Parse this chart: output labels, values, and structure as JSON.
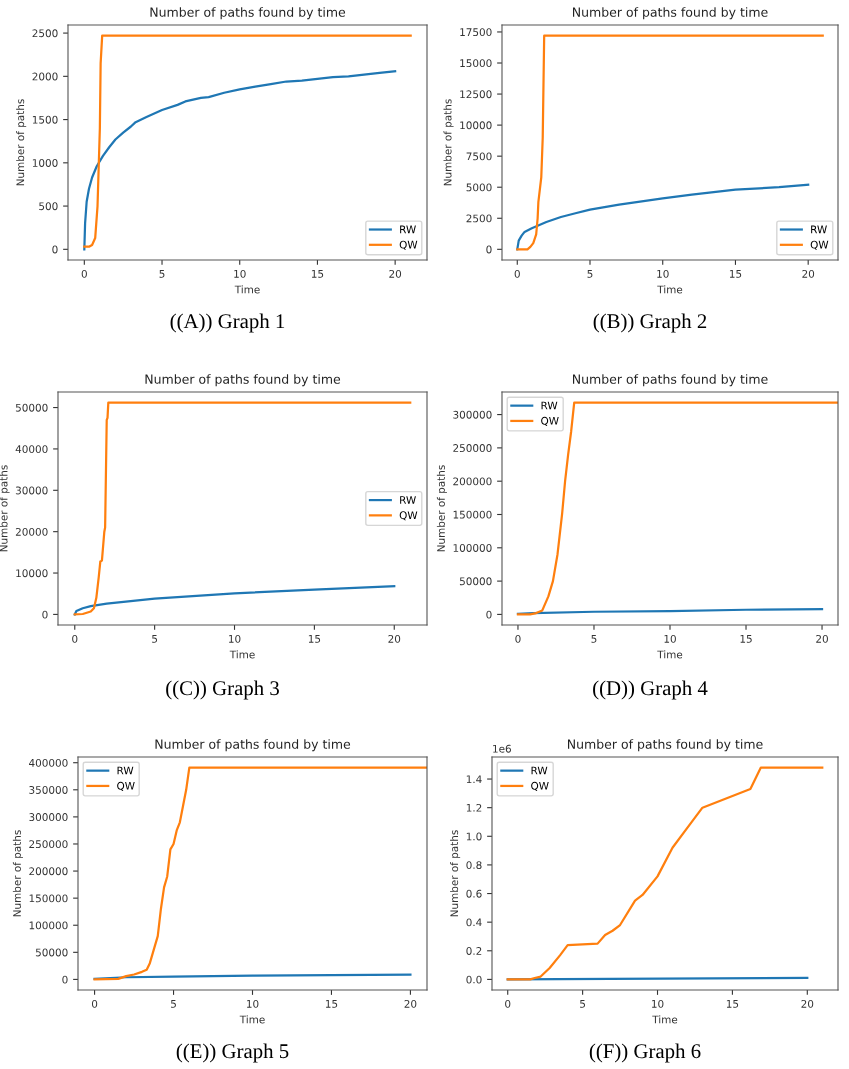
{
  "chart_data": [
    {
      "type": "line",
      "title": "Number of paths found by time",
      "xlabel": "Time",
      "ylabel": "Number of paths",
      "annotations": [
        "((A)) Graph 1"
      ],
      "legend": "lower right",
      "grid": false,
      "xlim": [
        -1.05,
        22.05
      ],
      "xticks": [
        0,
        5,
        10,
        15,
        20
      ],
      "ylim": [
        -123.5,
        2593.5
      ],
      "yticks": [
        0,
        500,
        1000,
        1500,
        2000,
        2500
      ],
      "series": [
        {
          "name": "RW",
          "color": "#1f77b4",
          "x": [
            0,
            0.05,
            0.15,
            0.3,
            0.5,
            0.8,
            1.2,
            1.6,
            2,
            2.5,
            3,
            3.3,
            4,
            5,
            6,
            6.5,
            7.5,
            8,
            9,
            10,
            11,
            12,
            13,
            14,
            15,
            16,
            17,
            18,
            19,
            20
          ],
          "values": [
            0,
            300,
            550,
            700,
            830,
            960,
            1080,
            1180,
            1270,
            1350,
            1420,
            1470,
            1530,
            1610,
            1670,
            1710,
            1750,
            1760,
            1810,
            1850,
            1880,
            1910,
            1940,
            1950,
            1970,
            1990,
            2000,
            2020,
            2040,
            2060
          ]
        },
        {
          "name": "QW",
          "color": "#ff7f0e",
          "x": [
            0,
            0.3,
            0.5,
            0.7,
            0.85,
            1.0,
            1.05,
            1.15,
            21
          ],
          "values": [
            30,
            30,
            50,
            130,
            500,
            1400,
            2150,
            2470,
            2470
          ]
        }
      ]
    },
    {
      "type": "line",
      "title": "Number of paths found by time",
      "xlabel": "Time",
      "ylabel": "Number of paths",
      "annotations": [
        "((B)) Graph 2"
      ],
      "legend": "lower right",
      "grid": false,
      "xlim": [
        -1.05,
        22.05
      ],
      "xticks": [
        0,
        5,
        10,
        15,
        20
      ],
      "ylim": [
        -860,
        18060
      ],
      "yticks": [
        0,
        2500,
        5000,
        7500,
        10000,
        12500,
        15000,
        17500
      ],
      "series": [
        {
          "name": "RW",
          "color": "#1f77b4",
          "x": [
            0,
            0.1,
            0.3,
            0.5,
            1,
            2,
            3,
            4,
            5,
            7,
            10,
            12,
            15,
            18,
            20
          ],
          "values": [
            0,
            700,
            1100,
            1400,
            1700,
            2200,
            2600,
            2900,
            3200,
            3600,
            4100,
            4400,
            4800,
            5000,
            5200
          ]
        },
        {
          "name": "QW",
          "color": "#ff7f0e",
          "x": [
            0,
            0.7,
            0.9,
            1.1,
            1.3,
            1.4,
            1.45,
            1.65,
            1.75,
            1.85,
            21
          ],
          "values": [
            0,
            0,
            200,
            500,
            1200,
            2500,
            3800,
            5800,
            9000,
            17200,
            17200
          ]
        }
      ]
    },
    {
      "type": "line",
      "title": "Number of paths found by time",
      "xlabel": "Time",
      "ylabel": "Number of paths",
      "annotations": [
        "((C)) Graph 3"
      ],
      "legend": "center right",
      "grid": false,
      "xlim": [
        -1.05,
        22.05
      ],
      "xticks": [
        0,
        5,
        10,
        15,
        20
      ],
      "ylim": [
        -2560,
        53760
      ],
      "yticks": [
        0,
        10000,
        20000,
        30000,
        40000,
        50000
      ],
      "series": [
        {
          "name": "RW",
          "color": "#1f77b4",
          "x": [
            0,
            0.1,
            0.5,
            1,
            2,
            5,
            10,
            15,
            20
          ],
          "values": [
            0,
            800,
            1500,
            2000,
            2600,
            3800,
            5100,
            6000,
            6800
          ]
        },
        {
          "name": "QW",
          "color": "#ff7f0e",
          "x": [
            0,
            0.5,
            1,
            1.2,
            1.35,
            1.5,
            1.6,
            1.7,
            1.85,
            1.9,
            2.0,
            2.05,
            2.1,
            21
          ],
          "values": [
            0,
            100,
            700,
            1500,
            4000,
            9000,
            12800,
            13000,
            20000,
            21000,
            47000,
            47500,
            51200,
            51200
          ]
        }
      ]
    },
    {
      "type": "line",
      "title": "Number of paths found by time",
      "xlabel": "Time",
      "ylabel": "Number of paths",
      "annotations": [
        "((D)) Graph 4"
      ],
      "legend": "upper left",
      "grid": false,
      "xlim": [
        -1.05,
        21.05
      ],
      "xticks": [
        0,
        5,
        10,
        15,
        20
      ],
      "ylim": [
        -15900,
        333900
      ],
      "yticks": [
        0,
        50000,
        100000,
        150000,
        200000,
        250000,
        300000
      ],
      "series": [
        {
          "name": "RW",
          "color": "#1f77b4",
          "x": [
            0,
            1,
            5,
            10,
            15,
            20
          ],
          "values": [
            1000,
            2000,
            4000,
            5000,
            7000,
            8000
          ]
        },
        {
          "name": "QW",
          "color": "#ff7f0e",
          "x": [
            0,
            0.8,
            1.2,
            1.6,
            2.0,
            2.3,
            2.6,
            2.9,
            3.1,
            3.3,
            3.5,
            3.7,
            21
          ],
          "values": [
            0,
            0,
            2000,
            6000,
            27000,
            50000,
            90000,
            150000,
            200000,
            240000,
            275000,
            318000,
            318000
          ]
        }
      ]
    },
    {
      "type": "line",
      "title": "Number of paths found by time",
      "xlabel": "Time",
      "ylabel": "Number of paths",
      "annotations": [
        "((E)) Graph 5"
      ],
      "legend": "upper left",
      "grid": false,
      "xlim": [
        -1.05,
        21.05
      ],
      "xticks": [
        0,
        5,
        10,
        15,
        20
      ],
      "ylim": [
        -19550,
        410550
      ],
      "yticks": [
        0,
        50000,
        100000,
        150000,
        200000,
        250000,
        300000,
        350000,
        400000
      ],
      "series": [
        {
          "name": "RW",
          "color": "#1f77b4",
          "x": [
            0,
            2,
            5,
            10,
            15,
            20
          ],
          "values": [
            1000,
            4000,
            5000,
            7000,
            8000,
            9000
          ]
        },
        {
          "name": "QW",
          "color": "#ff7f0e",
          "x": [
            0,
            1.5,
            2,
            2.5,
            3,
            3.3,
            3.5,
            3.8,
            4,
            4.2,
            4.4,
            4.6,
            4.8,
            5,
            5.2,
            5.4,
            5.6,
            5.8,
            6.0,
            21
          ],
          "values": [
            0,
            1000,
            6000,
            9000,
            14000,
            18000,
            30000,
            60000,
            80000,
            130000,
            170000,
            190000,
            240000,
            250000,
            275000,
            290000,
            320000,
            350000,
            391000,
            391000
          ]
        }
      ]
    },
    {
      "type": "line",
      "title": "Number of paths found by time",
      "xlabel": "Time",
      "ylabel": "Number of paths",
      "annotations": [
        "1e6",
        "((F)) Graph 6"
      ],
      "legend": "upper left",
      "grid": false,
      "xlim": [
        -1.05,
        22.05
      ],
      "xticks": [
        0,
        5,
        10,
        15,
        20
      ],
      "ylim": [
        -0.074,
        1.554
      ],
      "yticks": [
        {
          "value": 0,
          "label": "0.0"
        },
        0.2,
        0.4,
        0.6,
        0.8,
        {
          "value": 1,
          "label": "1.0"
        },
        1.2,
        1.4
      ],
      "series": [
        {
          "name": "RW",
          "color": "#1f77b4",
          "x": [
            0,
            20
          ],
          "values": [
            0,
            0.01
          ]
        },
        {
          "name": "QW",
          "color": "#ff7f0e",
          "x": [
            0,
            1.5,
            1.8,
            2.2,
            2.8,
            3.5,
            4,
            6,
            6.5,
            7,
            7.5,
            8.5,
            9,
            10,
            11,
            12,
            13,
            16.2,
            16.9,
            21
          ],
          "values": [
            0,
            0,
            0.01,
            0.02,
            0.08,
            0.17,
            0.24,
            0.25,
            0.31,
            0.34,
            0.38,
            0.55,
            0.59,
            0.72,
            0.92,
            1.06,
            1.2,
            1.33,
            1.48,
            1.48
          ]
        }
      ]
    }
  ]
}
